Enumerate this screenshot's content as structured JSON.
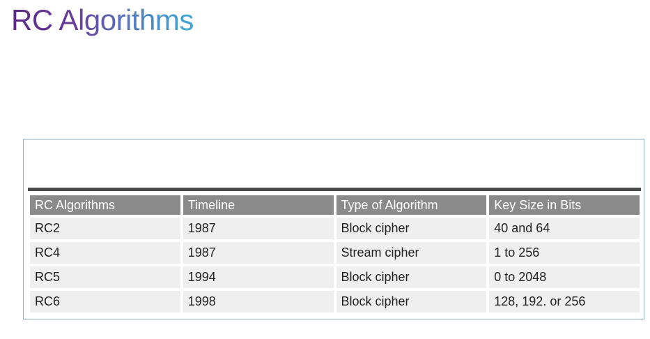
{
  "slide": {
    "title": "RC Algorithms"
  },
  "table": {
    "headers": [
      "RC Algorithms",
      "Timeline",
      "Type of Algorithm",
      "Key Size in Bits"
    ],
    "rows": [
      [
        "RC2",
        "1987",
        "Block cipher",
        "40 and 64"
      ],
      [
        "RC4",
        "1987",
        "Stream cipher",
        "1 to 256"
      ],
      [
        "RC5",
        "1994",
        "Block cipher",
        "0 to 2048"
      ],
      [
        "RC6",
        "1998",
        "Block cipher",
        "128, 192. or 256"
      ]
    ]
  },
  "colors": {
    "title_gradient_start": "#5b2a86",
    "title_gradient_end": "#3fa9d6",
    "header_background": "#8a8a8a",
    "row_background": "#efefef",
    "frame_border": "#8eaec4",
    "rule": "#4a4a4a"
  }
}
